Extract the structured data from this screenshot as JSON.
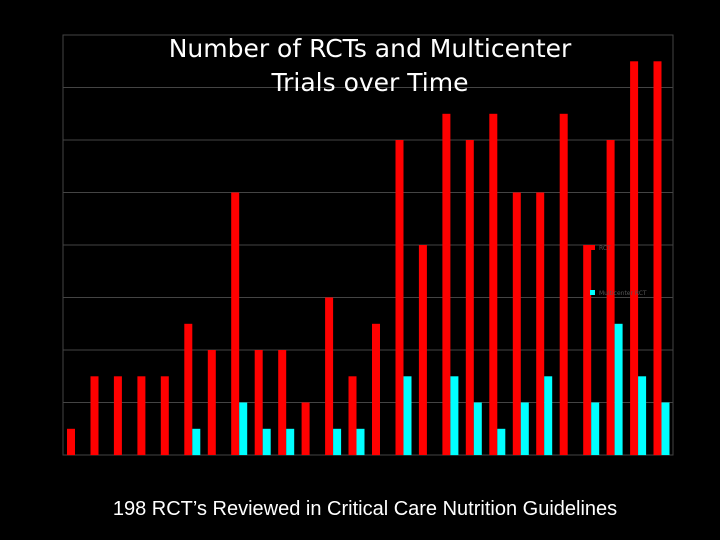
{
  "title_lines": [
    "Number of RCTs and Multicenter",
    "Trials over Time"
  ],
  "caption": "198 RCT’s Reviewed in Critical Care Nutrition Guidelines",
  "chart_data": {
    "type": "bar",
    "grid": true,
    "ylim": [
      0,
      16
    ],
    "series": [
      {
        "key": "rct",
        "color": "#ff0000",
        "values": [
          1,
          3,
          3,
          3,
          3,
          5,
          4,
          10,
          4,
          4,
          2,
          6,
          3,
          5,
          12,
          8,
          13,
          12,
          13,
          10,
          10,
          13,
          8,
          12,
          15,
          15
        ]
      },
      {
        "key": "multicenter",
        "color": "#00ffff",
        "values": [
          0,
          0,
          0,
          0,
          0,
          1,
          0,
          2,
          1,
          1,
          0,
          1,
          1,
          0,
          3,
          0,
          3,
          2,
          1,
          2,
          3,
          0,
          2,
          5,
          3,
          2
        ]
      }
    ],
    "legend_position": "right",
    "legend_entries": [
      {
        "label": "RCT",
        "color": "#ff0000"
      },
      {
        "label": "Multicenter RCT",
        "color": "#00ffff"
      }
    ]
  }
}
